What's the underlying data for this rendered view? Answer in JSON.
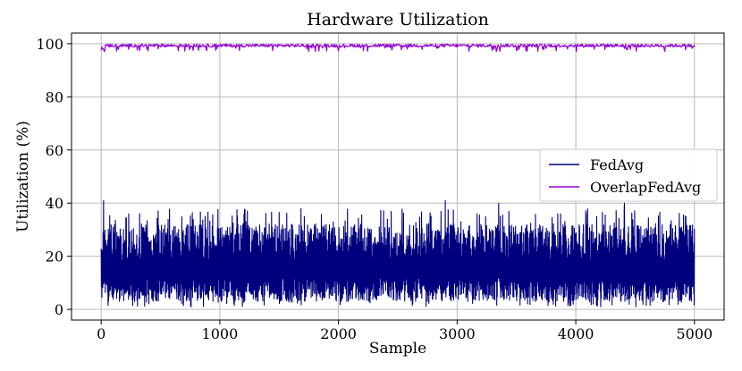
{
  "chart_data": {
    "type": "line",
    "title": "Hardware Utilization",
    "xlabel": "Sample",
    "ylabel": "Utilization (%)",
    "xlim": [
      -250,
      5250
    ],
    "ylim": [
      -4,
      104
    ],
    "xticks": [
      0,
      1000,
      2000,
      3000,
      4000,
      5000
    ],
    "yticks": [
      0,
      20,
      40,
      60,
      80,
      100
    ],
    "grid": true,
    "legend_position": "center-right",
    "series": [
      {
        "name": "FedAvg",
        "color": "#00007f",
        "x_range": [
          0,
          5000
        ],
        "value_range": [
          1,
          41
        ],
        "typical_band": [
          3,
          32
        ],
        "peaks": [
          {
            "x": 20,
            "y": 41
          },
          {
            "x": 2900,
            "y": 41
          },
          {
            "x": 3350,
            "y": 40
          },
          {
            "x": 4410,
            "y": 40
          }
        ]
      },
      {
        "name": "OverlapFedAvg",
        "color": "#9400d3",
        "x_range": [
          0,
          5000
        ],
        "value_range": [
          97,
          100
        ],
        "typical_value": 99.3
      }
    ]
  }
}
